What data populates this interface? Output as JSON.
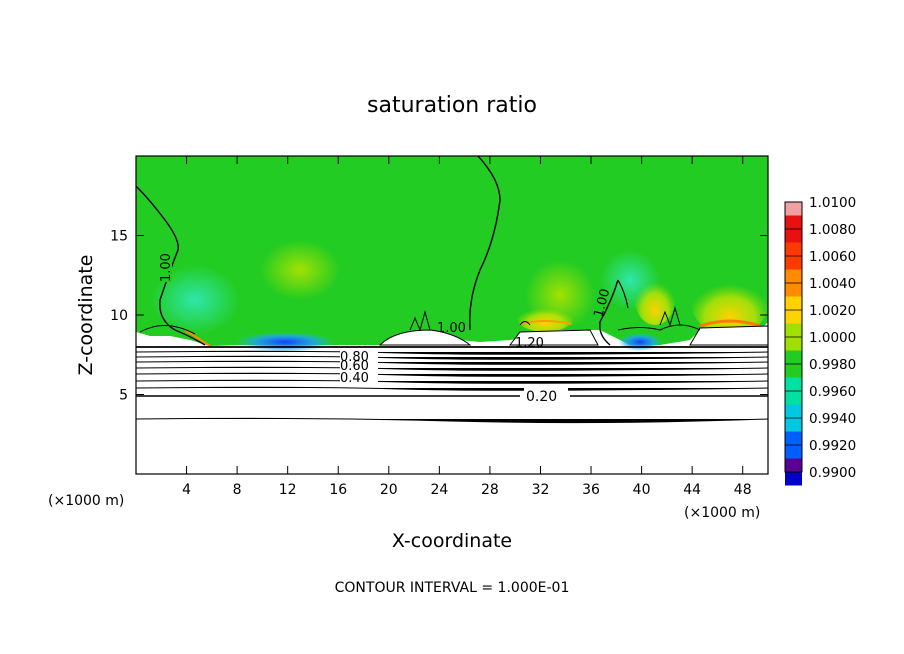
{
  "chart_data": {
    "type": "heatmap",
    "title": "saturation ratio",
    "xlabel": "X-coordinate",
    "ylabel": "Z-coordinate",
    "x_unit": "(×1000 m)",
    "y_unit": "(×1000 m)",
    "xlim": [
      0,
      50
    ],
    "ylim": [
      0,
      20
    ],
    "x_ticks": [
      4,
      8,
      12,
      16,
      20,
      24,
      28,
      32,
      36,
      40,
      44,
      48
    ],
    "y_ticks": [
      5,
      10,
      15
    ],
    "colorbar": {
      "levels": [
        "1.0100",
        "1.0080",
        "1.0060",
        "1.0040",
        "1.0020",
        "1.0000",
        "0.9980",
        "0.9960",
        "0.9940",
        "0.9920",
        "0.9900"
      ],
      "colors": [
        "#f0a0a0",
        "#e81010",
        "#ff3a00",
        "#ff8c00",
        "#ffd200",
        "#a0e000",
        "#22cc22",
        "#00e0a0",
        "#00c8e0",
        "#0060ff",
        "#0000c8",
        "#5a0096"
      ]
    },
    "contour_labels": [
      "1.00",
      "1.00",
      "1.00",
      "1.20",
      "0.80",
      "0.60",
      "0.40",
      "0.20"
    ],
    "footer": "CONTOUR INTERVAL = 1.000E-01"
  }
}
